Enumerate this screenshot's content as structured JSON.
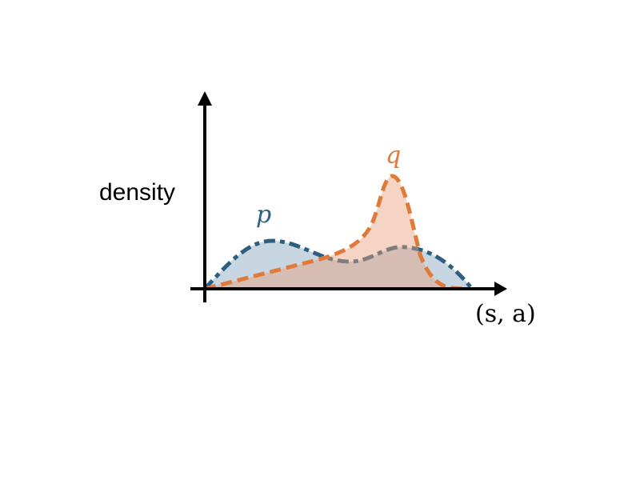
{
  "diagram": {
    "y_axis_label": "density",
    "x_axis_label": "(s, a)",
    "curves": [
      {
        "name": "p",
        "color": "#2d5f80",
        "fill": "#c4d4de",
        "line_style": "dash-dot"
      },
      {
        "name": "q",
        "color": "#e07a3a",
        "fill": "#f6d3c3",
        "line_style": "dashed"
      }
    ]
  }
}
